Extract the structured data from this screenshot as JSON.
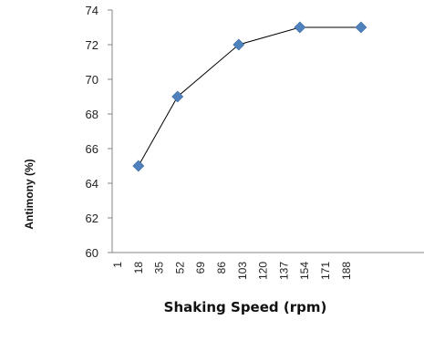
{
  "chart_data": {
    "type": "line",
    "title": "",
    "xlabel": "Shaking Speed (rpm)",
    "ylabel": "Antimony (%)",
    "categories": [
      "1",
      "18",
      "35",
      "52",
      "69",
      "86",
      "103",
      "120",
      "137",
      "154",
      "171",
      "188"
    ],
    "ylim": [
      60,
      74
    ],
    "yticks": [
      60,
      62,
      64,
      66,
      68,
      70,
      72,
      74
    ],
    "grid": false,
    "legend": "none",
    "series": [
      {
        "points": [
          {
            "x": 18,
            "y": 65
          },
          {
            "x": 50,
            "y": 69
          },
          {
            "x": 100,
            "y": 72
          },
          {
            "x": 150,
            "y": 73
          },
          {
            "x": 200,
            "y": 73
          }
        ]
      }
    ],
    "colors": {
      "line": "#000000",
      "marker": "#4f81bd",
      "axis": "#868686"
    }
  }
}
